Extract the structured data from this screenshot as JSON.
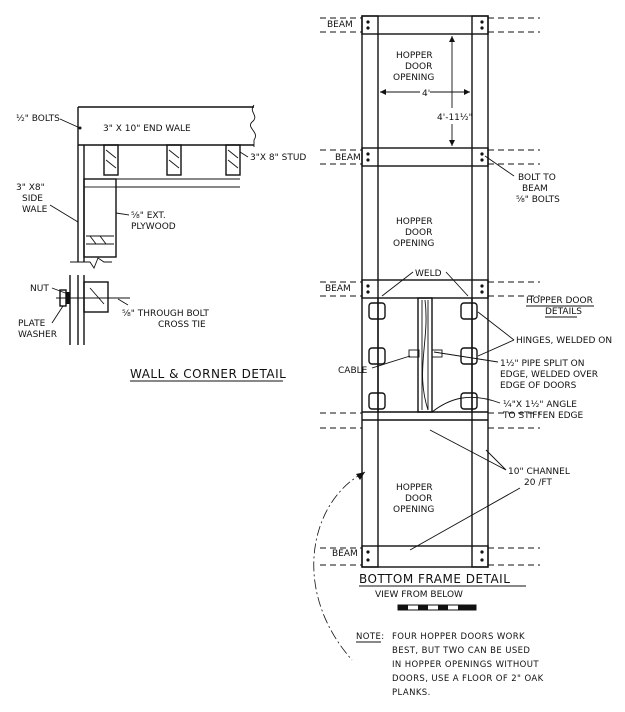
{
  "wall_detail": {
    "bolts_label": "½\" BOLTS",
    "end_wale_label": "3\" X 10\" END WALE",
    "stud_label": "3\"X 8\" STUD",
    "side_wale_label": [
      "3\" X8\"",
      "SIDE",
      "WALE"
    ],
    "plywood_label": [
      "⅝\" EXT.",
      "PLYWOOD"
    ],
    "nut_label": "NUT",
    "plate_washer_label": [
      "PLATE",
      "WASHER"
    ],
    "through_bolt_label": [
      "⅝\"  THROUGH BOLT",
      "CROSS TIE"
    ],
    "title": "WALL & CORNER DETAIL"
  },
  "bottom_frame": {
    "beam_labels": [
      "BEAM",
      "BEAM",
      "BEAM",
      "BEAM"
    ],
    "hopper_opening_label": [
      "HOPPER",
      "DOOR",
      "OPENING"
    ],
    "dim_width": "4'",
    "dim_length": "4'-11½\"",
    "bolt_to_beam_label": [
      "BOLT TO",
      "BEAM",
      "⅝\" BOLTS"
    ],
    "weld_label": "WELD",
    "hopper_door_details_label": [
      "HOPPER DOOR",
      "DETAILS"
    ],
    "hinges_label": "HINGES, WELDED ON",
    "cable_label": "CABLE",
    "pipe_label": [
      "1½\" PIPE SPLIT ON",
      "EDGE, WELDED OVER",
      "EDGE OF DOORS"
    ],
    "angle_label": [
      "¼\"X 1½\" ANGLE",
      "TO STIFFEN EDGE"
    ],
    "channel_label": [
      "10\" CHANNEL",
      "20 /FT"
    ],
    "title": "BOTTOM FRAME DETAIL",
    "subtitle": "VIEW FROM BELOW"
  },
  "note": {
    "heading": "NOTE:",
    "lines": [
      "FOUR HOPPER DOORS WORK",
      "BEST, BUT TWO CAN BE USED",
      "IN HOPPER OPENINGS WITHOUT",
      "DOORS, USE A FLOOR OF 2\" OAK",
      "PLANKS."
    ]
  }
}
